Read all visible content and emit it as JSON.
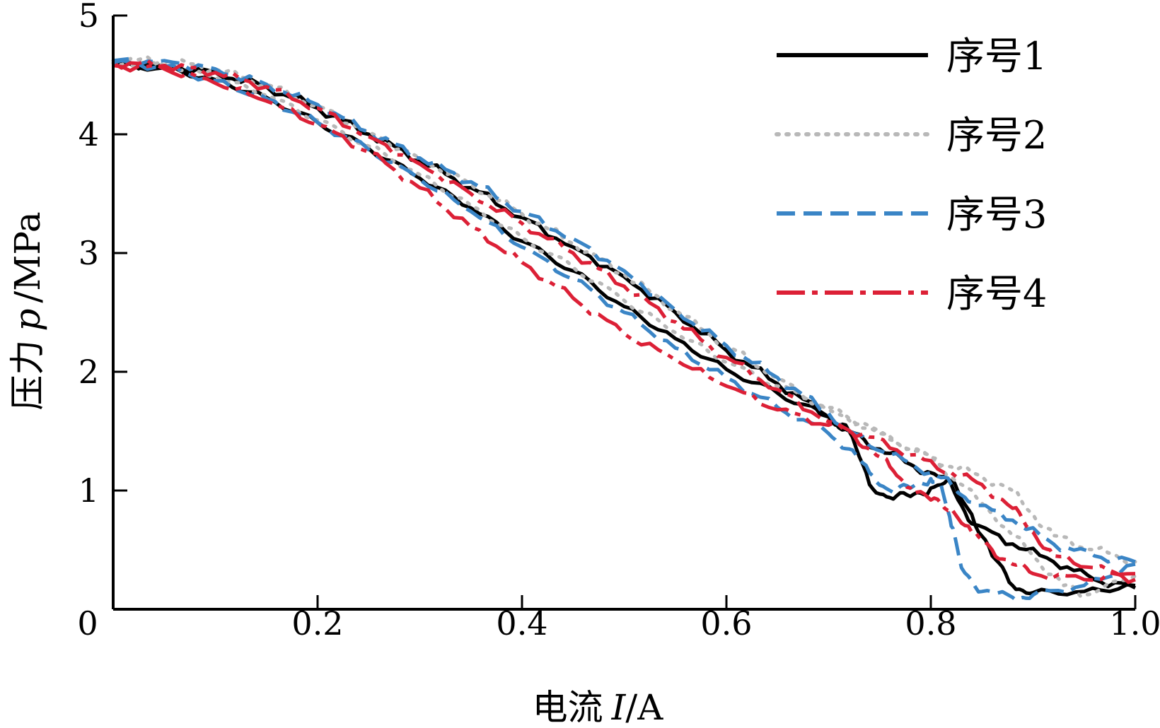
{
  "chart_data": {
    "type": "line",
    "xlabel": {
      "prefix": "电流",
      "symbol": "I",
      "unit": "/A"
    },
    "ylabel": {
      "prefix": "压力",
      "symbol": "p",
      "unit": "/MPa"
    },
    "xlim": [
      0,
      1.0
    ],
    "ylim": [
      0,
      5
    ],
    "x_ticks": [
      0.2,
      0.4,
      0.6,
      0.8,
      1.0
    ],
    "x_tick_labels": [
      "0.2",
      "0.4",
      "0.6",
      "0.8",
      "1.0"
    ],
    "origin_label": "0",
    "y_ticks": [
      1,
      2,
      3,
      4,
      5
    ],
    "y_tick_labels": [
      "1",
      "2",
      "3",
      "4",
      "5"
    ],
    "grid": false,
    "legend_position": "top-right",
    "series": [
      {
        "name": "序号1",
        "color": "#000000",
        "dash": "solid",
        "up": [
          [
            0.0,
            4.58
          ],
          [
            0.05,
            4.56
          ],
          [
            0.1,
            4.46
          ],
          [
            0.15,
            4.31
          ],
          [
            0.2,
            4.1
          ],
          [
            0.25,
            3.88
          ],
          [
            0.3,
            3.63
          ],
          [
            0.35,
            3.38
          ],
          [
            0.4,
            3.1
          ],
          [
            0.45,
            2.85
          ],
          [
            0.5,
            2.55
          ],
          [
            0.55,
            2.28
          ],
          [
            0.6,
            2.02
          ],
          [
            0.65,
            1.82
          ],
          [
            0.7,
            1.62
          ],
          [
            0.72,
            1.5
          ],
          [
            0.74,
            1.05
          ],
          [
            0.76,
            0.94
          ],
          [
            0.78,
            0.95
          ],
          [
            0.8,
            1.02
          ],
          [
            0.82,
            1.08
          ],
          [
            0.84,
            0.8
          ],
          [
            0.86,
            0.45
          ],
          [
            0.88,
            0.2
          ],
          [
            0.9,
            0.14
          ],
          [
            0.95,
            0.15
          ],
          [
            1.0,
            0.2
          ]
        ],
        "down": [
          [
            1.0,
            0.18
          ],
          [
            0.96,
            0.25
          ],
          [
            0.92,
            0.4
          ],
          [
            0.88,
            0.55
          ],
          [
            0.84,
            0.72
          ],
          [
            0.82,
            1.05
          ],
          [
            0.8,
            1.15
          ],
          [
            0.78,
            1.22
          ],
          [
            0.75,
            1.35
          ],
          [
            0.72,
            1.5
          ],
          [
            0.7,
            1.62
          ],
          [
            0.65,
            1.9
          ],
          [
            0.6,
            2.18
          ],
          [
            0.55,
            2.5
          ],
          [
            0.5,
            2.8
          ],
          [
            0.45,
            3.05
          ],
          [
            0.4,
            3.3
          ],
          [
            0.35,
            3.55
          ],
          [
            0.3,
            3.78
          ],
          [
            0.25,
            4.0
          ],
          [
            0.2,
            4.22
          ],
          [
            0.15,
            4.4
          ],
          [
            0.1,
            4.52
          ],
          [
            0.05,
            4.58
          ],
          [
            0.0,
            4.6
          ]
        ]
      },
      {
        "name": "序号2",
        "color": "#b8b8b8",
        "dash": "dotted",
        "up": [
          [
            0.0,
            4.6
          ],
          [
            0.05,
            4.58
          ],
          [
            0.1,
            4.48
          ],
          [
            0.15,
            4.33
          ],
          [
            0.2,
            4.12
          ],
          [
            0.25,
            3.9
          ],
          [
            0.3,
            3.66
          ],
          [
            0.35,
            3.4
          ],
          [
            0.4,
            3.13
          ],
          [
            0.45,
            2.88
          ],
          [
            0.5,
            2.6
          ],
          [
            0.55,
            2.33
          ],
          [
            0.6,
            2.08
          ],
          [
            0.65,
            1.88
          ],
          [
            0.7,
            1.7
          ],
          [
            0.75,
            1.48
          ],
          [
            0.8,
            1.28
          ],
          [
            0.83,
            1.05
          ],
          [
            0.86,
            0.8
          ],
          [
            0.9,
            0.45
          ],
          [
            0.93,
            0.2
          ],
          [
            0.95,
            0.12
          ],
          [
            1.0,
            0.28
          ]
        ],
        "down": [
          [
            1.0,
            0.4
          ],
          [
            0.96,
            0.5
          ],
          [
            0.92,
            0.62
          ],
          [
            0.9,
            0.8
          ],
          [
            0.88,
            1.0
          ],
          [
            0.85,
            1.12
          ],
          [
            0.82,
            1.2
          ],
          [
            0.78,
            1.35
          ],
          [
            0.75,
            1.5
          ],
          [
            0.7,
            1.68
          ],
          [
            0.65,
            1.95
          ],
          [
            0.6,
            2.22
          ],
          [
            0.55,
            2.52
          ],
          [
            0.5,
            2.82
          ],
          [
            0.45,
            3.08
          ],
          [
            0.4,
            3.33
          ],
          [
            0.35,
            3.58
          ],
          [
            0.3,
            3.8
          ],
          [
            0.25,
            4.02
          ],
          [
            0.2,
            4.24
          ],
          [
            0.15,
            4.42
          ],
          [
            0.1,
            4.55
          ],
          [
            0.05,
            4.62
          ],
          [
            0.0,
            4.62
          ]
        ]
      },
      {
        "name": "序号3",
        "color": "#3a85c6",
        "dash": "dashed",
        "up": [
          [
            0.0,
            4.6
          ],
          [
            0.05,
            4.57
          ],
          [
            0.1,
            4.45
          ],
          [
            0.15,
            4.3
          ],
          [
            0.2,
            4.1
          ],
          [
            0.25,
            3.87
          ],
          [
            0.3,
            3.62
          ],
          [
            0.35,
            3.35
          ],
          [
            0.4,
            3.05
          ],
          [
            0.45,
            2.78
          ],
          [
            0.5,
            2.5
          ],
          [
            0.55,
            2.2
          ],
          [
            0.6,
            1.95
          ],
          [
            0.65,
            1.7
          ],
          [
            0.7,
            1.48
          ],
          [
            0.72,
            1.35
          ],
          [
            0.74,
            1.15
          ],
          [
            0.76,
            1.0
          ],
          [
            0.78,
            1.02
          ],
          [
            0.8,
            1.1
          ],
          [
            0.81,
            1.05
          ],
          [
            0.82,
            0.7
          ],
          [
            0.83,
            0.35
          ],
          [
            0.85,
            0.15
          ],
          [
            0.88,
            0.1
          ],
          [
            0.9,
            0.12
          ],
          [
            0.95,
            0.2
          ],
          [
            1.0,
            0.38
          ]
        ],
        "down": [
          [
            1.0,
            0.4
          ],
          [
            0.96,
            0.45
          ],
          [
            0.92,
            0.55
          ],
          [
            0.88,
            0.75
          ],
          [
            0.84,
            0.9
          ],
          [
            0.82,
            1.05
          ],
          [
            0.8,
            1.15
          ],
          [
            0.76,
            1.3
          ],
          [
            0.72,
            1.5
          ],
          [
            0.7,
            1.65
          ],
          [
            0.65,
            1.95
          ],
          [
            0.6,
            2.22
          ],
          [
            0.55,
            2.52
          ],
          [
            0.5,
            2.85
          ],
          [
            0.45,
            3.12
          ],
          [
            0.4,
            3.35
          ],
          [
            0.35,
            3.6
          ],
          [
            0.3,
            3.8
          ],
          [
            0.25,
            4.02
          ],
          [
            0.2,
            4.25
          ],
          [
            0.15,
            4.42
          ],
          [
            0.1,
            4.55
          ],
          [
            0.05,
            4.62
          ],
          [
            0.0,
            4.62
          ]
        ]
      },
      {
        "name": "序号4",
        "color": "#dc2036",
        "dash": "dashdot",
        "up": [
          [
            0.0,
            4.58
          ],
          [
            0.05,
            4.55
          ],
          [
            0.1,
            4.43
          ],
          [
            0.15,
            4.28
          ],
          [
            0.2,
            4.08
          ],
          [
            0.25,
            3.85
          ],
          [
            0.3,
            3.55
          ],
          [
            0.35,
            3.22
          ],
          [
            0.4,
            2.92
          ],
          [
            0.45,
            2.62
          ],
          [
            0.5,
            2.32
          ],
          [
            0.55,
            2.1
          ],
          [
            0.6,
            1.88
          ],
          [
            0.65,
            1.68
          ],
          [
            0.7,
            1.55
          ],
          [
            0.72,
            1.5
          ],
          [
            0.74,
            1.35
          ],
          [
            0.76,
            1.2
          ],
          [
            0.78,
            1.02
          ],
          [
            0.8,
            0.92
          ],
          [
            0.82,
            0.85
          ],
          [
            0.84,
            0.65
          ],
          [
            0.86,
            0.5
          ],
          [
            0.88,
            0.38
          ],
          [
            0.9,
            0.3
          ],
          [
            0.95,
            0.25
          ],
          [
            1.0,
            0.3
          ]
        ],
        "down": [
          [
            1.0,
            0.25
          ],
          [
            0.96,
            0.35
          ],
          [
            0.92,
            0.45
          ],
          [
            0.9,
            0.65
          ],
          [
            0.88,
            0.85
          ],
          [
            0.85,
            1.05
          ],
          [
            0.82,
            1.15
          ],
          [
            0.78,
            1.3
          ],
          [
            0.74,
            1.45
          ],
          [
            0.7,
            1.58
          ],
          [
            0.65,
            1.85
          ],
          [
            0.6,
            2.12
          ],
          [
            0.55,
            2.42
          ],
          [
            0.5,
            2.72
          ],
          [
            0.45,
            3.0
          ],
          [
            0.4,
            3.25
          ],
          [
            0.35,
            3.5
          ],
          [
            0.3,
            3.75
          ],
          [
            0.25,
            3.98
          ],
          [
            0.2,
            4.22
          ],
          [
            0.15,
            4.4
          ],
          [
            0.1,
            4.52
          ],
          [
            0.05,
            4.58
          ],
          [
            0.0,
            4.6
          ]
        ]
      }
    ]
  }
}
